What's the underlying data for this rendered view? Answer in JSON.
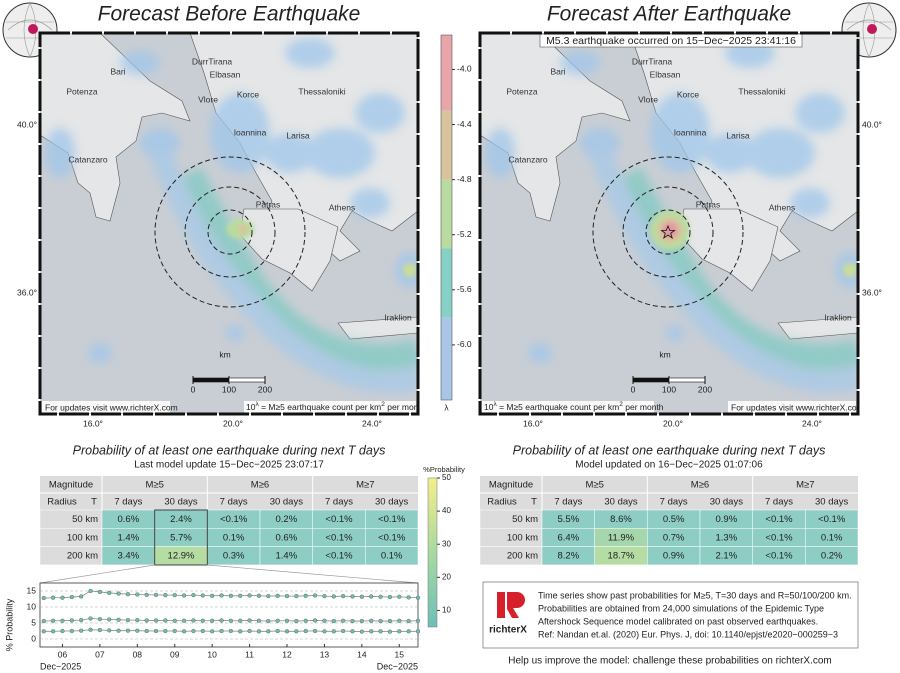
{
  "maps": [
    {
      "title": "Forecast Before Earthquake",
      "places": [
        "Bari",
        "Potenza",
        "Catanzaro",
        "DurrTirana",
        "Elbasan",
        "Vlore",
        "Korce",
        "Thessaloniki",
        "Ioannina",
        "Larisa",
        "Patras",
        "Athens",
        "Iraklion"
      ],
      "lat_labels": [
        "40.0°",
        "36.0°"
      ],
      "lon_labels": [
        "16.0°",
        "20.0°",
        "24.0°"
      ],
      "scale": {
        "unit": "km",
        "ticks": [
          0,
          100,
          200
        ]
      },
      "updates": "For updates visit www.richterX.com",
      "legend_note": [
        "10",
        "λ",
        " = M≥5 earthquake count per km",
        "2",
        " per month"
      ]
    },
    {
      "title": "Forecast After Earthquake",
      "annotation": "M5.3 earthquake occurred on 15−Dec−2025 23:41:16",
      "places": [
        "Bari",
        "Potenza",
        "Catanzaro",
        "DurrTirana",
        "Elbasan",
        "Vlore",
        "Korce",
        "Thessaloniki",
        "Ioannina",
        "Larisa",
        "Patras",
        "Athens",
        "Iraklion"
      ],
      "lat_labels": [
        "40.0°",
        "36.0°"
      ],
      "lon_labels": [
        "16.0°",
        "20.0°",
        "24.0°"
      ],
      "scale": {
        "unit": "km",
        "ticks": [
          0,
          100,
          200
        ]
      },
      "updates": "For updates visit www.richterX.com",
      "legend_note": [
        "10",
        "λ",
        " = M≥5 earthquake count per km",
        "2",
        " per month"
      ]
    }
  ],
  "colorbar": {
    "label": "λ",
    "lim": [
      -6.4,
      -3.75
    ],
    "ticks": [
      {
        "value": -4,
        "label": "-4.0"
      },
      {
        "value": -4.4,
        "label": "-4.4"
      },
      {
        "value": -4.8,
        "label": "-4.8"
      },
      {
        "value": -5.2,
        "label": "-5.2"
      },
      {
        "value": -5.6,
        "label": "-5.6"
      },
      {
        "value": -6,
        "label": "-6.0"
      }
    ],
    "bands": [
      {
        "from": -6.4,
        "to": -5.8,
        "color": "#a9c6e6"
      },
      {
        "from": -5.8,
        "to": -5.3,
        "color": "#86d0c6"
      },
      {
        "from": -5.3,
        "to": -4.8,
        "color": "#b9dba0"
      },
      {
        "from": -4.8,
        "to": -4.3,
        "color": "#d8c49c"
      },
      {
        "from": -4.3,
        "to": -3.75,
        "color": "#e8a5aa"
      }
    ]
  },
  "prob_colorbar": {
    "label": "%Probability",
    "lim": [
      5,
      50
    ],
    "ticks": [
      10,
      20,
      30,
      40,
      50
    ]
  },
  "tables": [
    {
      "title": "Probability of at least one earthquake during next T days",
      "subtitle": "Last model update 15−Dec−2025 23:07:17",
      "header": [
        "Magnitude",
        "M≥5",
        "M≥6",
        "M≥7"
      ],
      "subheader": [
        "Radius",
        "T",
        "7 days",
        "30 days",
        "7 days",
        "30 days",
        "7 days",
        "30 days"
      ],
      "rows": [
        [
          "50 km",
          "0.6%",
          "2.4%",
          "<0.1%",
          "0.2%",
          "<0.1%",
          "<0.1%"
        ],
        [
          "100 km",
          "1.4%",
          "5.7%",
          "0.1%",
          "0.6%",
          "<0.1%",
          "<0.1%"
        ],
        [
          "200 km",
          "3.4%",
          "12.9%",
          "0.3%",
          "1.4%",
          "<0.1%",
          "0.1%"
        ]
      ]
    },
    {
      "title": "Probability of at least one earthquake during next T days",
      "subtitle": "Model updated on 16−Dec−2025 01:07:06",
      "header": [
        "Magnitude",
        "M≥5",
        "M≥6",
        "M≥7"
      ],
      "subheader": [
        "Radius",
        "T",
        "7 days",
        "30 days",
        "7 days",
        "30 days",
        "7 days",
        "30 days"
      ],
      "rows": [
        [
          "50 km",
          "5.5%",
          "8.6%",
          "0.5%",
          "0.9%",
          "<0.1%",
          "<0.1%"
        ],
        [
          "100 km",
          "6.4%",
          "11.9%",
          "0.7%",
          "1.3%",
          "<0.1%",
          "0.1%"
        ],
        [
          "200 km",
          "8.2%",
          "18.7%",
          "0.9%",
          "2.1%",
          "<0.1%",
          "0.2%"
        ]
      ]
    }
  ],
  "chart_data": {
    "type": "line",
    "ylabel": "% Probability",
    "ylim": [
      -2.5,
      17.5
    ],
    "yticks": [
      0,
      5,
      10,
      15
    ],
    "grid": true,
    "xlim": [
      5.4,
      15.5
    ],
    "xticks": [
      {
        "value": 6,
        "label": "06"
      },
      {
        "value": 7,
        "label": "07"
      },
      {
        "value": 8,
        "label": "08"
      },
      {
        "value": 9,
        "label": "09"
      },
      10,
      11,
      12,
      13,
      14,
      15
    ],
    "x_start_label": "Dec−2025",
    "x_end_label": "Dec−2025",
    "x": [
      5.5,
      5.75,
      6,
      6.25,
      6.5,
      6.75,
      7,
      7.25,
      7.5,
      7.75,
      8,
      8.25,
      8.5,
      8.75,
      9,
      9.25,
      9.5,
      9.75,
      10,
      10.25,
      10.5,
      10.75,
      11,
      11.25,
      11.5,
      11.75,
      12,
      12.25,
      12.5,
      12.75,
      13,
      13.25,
      13.5,
      13.75,
      14,
      14.25,
      14.5,
      14.75,
      15,
      15.25,
      15.5
    ],
    "series": [
      {
        "color": "#6dbfb0",
        "values": [
          12.8,
          12.9,
          12.9,
          13.1,
          13.3,
          15.0,
          14.7,
          14.4,
          14.2,
          14.0,
          13.9,
          13.8,
          13.8,
          13.7,
          13.7,
          13.6,
          13.7,
          13.6,
          13.5,
          13.6,
          13.5,
          13.5,
          13.6,
          13.5,
          13.4,
          13.5,
          13.4,
          13.4,
          13.5,
          13.6,
          13.4,
          13.3,
          13.4,
          13.3,
          13.2,
          13.3,
          13.2,
          13.1,
          13.2,
          13.0,
          12.9
        ]
      },
      {
        "color": "#6dbfb0",
        "values": [
          5.6,
          5.7,
          5.7,
          5.8,
          5.9,
          6.4,
          6.2,
          6.1,
          6.0,
          5.9,
          5.9,
          5.8,
          5.8,
          5.8,
          5.7,
          5.7,
          5.8,
          5.7,
          5.7,
          5.8,
          5.7,
          5.7,
          5.8,
          5.7,
          5.6,
          5.7,
          5.7,
          5.6,
          5.7,
          5.8,
          5.7,
          5.6,
          5.7,
          5.6,
          5.6,
          5.7,
          5.6,
          5.6,
          5.7,
          5.6,
          5.7
        ]
      },
      {
        "color": "#6dbfb0",
        "values": [
          2.4,
          2.4,
          2.5,
          2.5,
          2.6,
          2.9,
          2.8,
          2.7,
          2.6,
          2.6,
          2.6,
          2.5,
          2.5,
          2.5,
          2.5,
          2.4,
          2.5,
          2.5,
          2.4,
          2.5,
          2.5,
          2.4,
          2.5,
          2.4,
          2.4,
          2.5,
          2.4,
          2.4,
          2.5,
          2.5,
          2.4,
          2.4,
          2.5,
          2.4,
          2.3,
          2.4,
          2.4,
          2.3,
          2.4,
          2.4,
          2.4
        ]
      }
    ]
  },
  "info": {
    "logo": "richterX",
    "lines": [
      "Time series show past probabilities for M≥5, T=30 days and R=50/100/200 km.",
      "Probabilities are obtained from 24,000 simulations of the Epidemic Type",
      "Aftershock Sequence model calibrated on past observed earthquakes.",
      "Ref: Nandan et.al. (2020) Eur. Phys. J, doi: 10.1140/epjst/e2020−000259−3"
    ],
    "help": "Help us improve the model: challenge these probabilities on richterX.com"
  }
}
